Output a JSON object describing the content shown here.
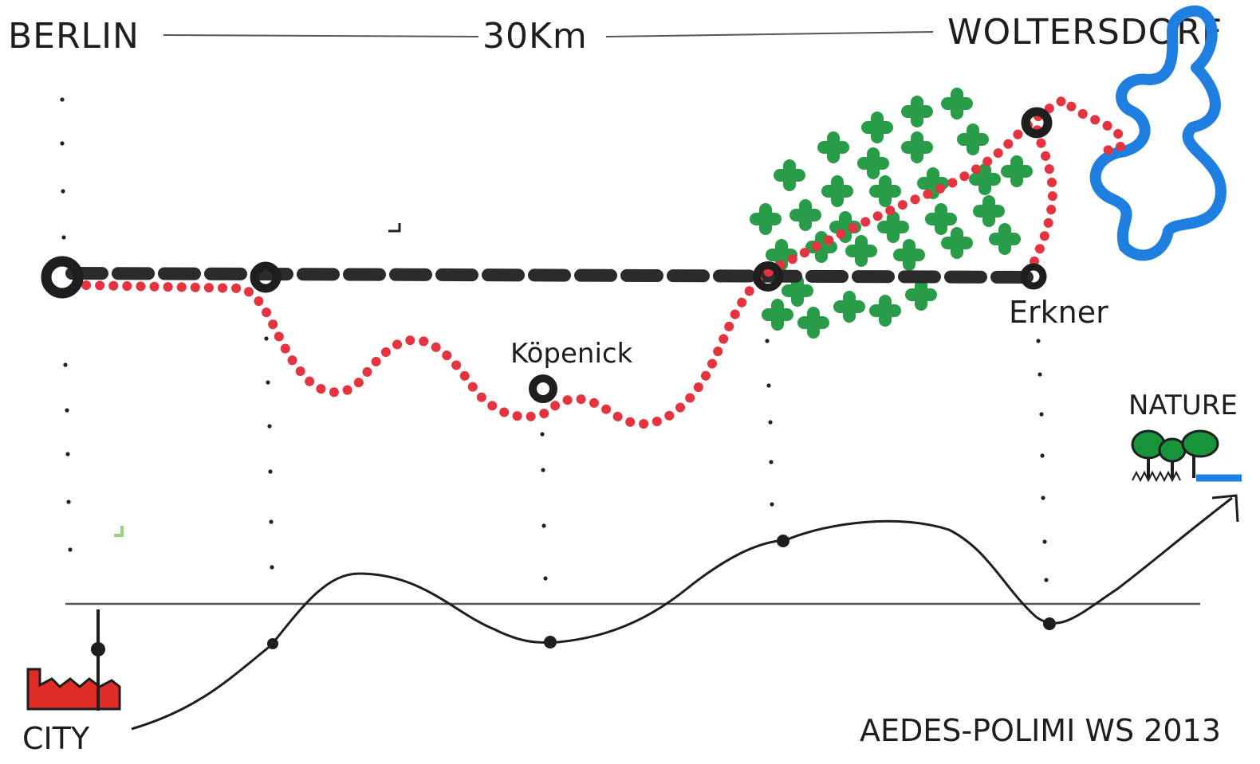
{
  "header": {
    "origin": "BERLIN",
    "distance": "30Km",
    "destination": "WOLTERSDORF"
  },
  "stations": {
    "kopenick": "Köpenick",
    "erkner": "Erkner"
  },
  "legend": {
    "nature": "NATURE",
    "city": "CITY"
  },
  "credit": "AEDES-POLIMI WS 2013",
  "colors": {
    "ink": "#1e1e1e",
    "rail": "#2b2b2b",
    "route": "#e5333f",
    "forest": "#17943a",
    "water": "#1f7fe0",
    "factory": "#e02b26"
  }
}
